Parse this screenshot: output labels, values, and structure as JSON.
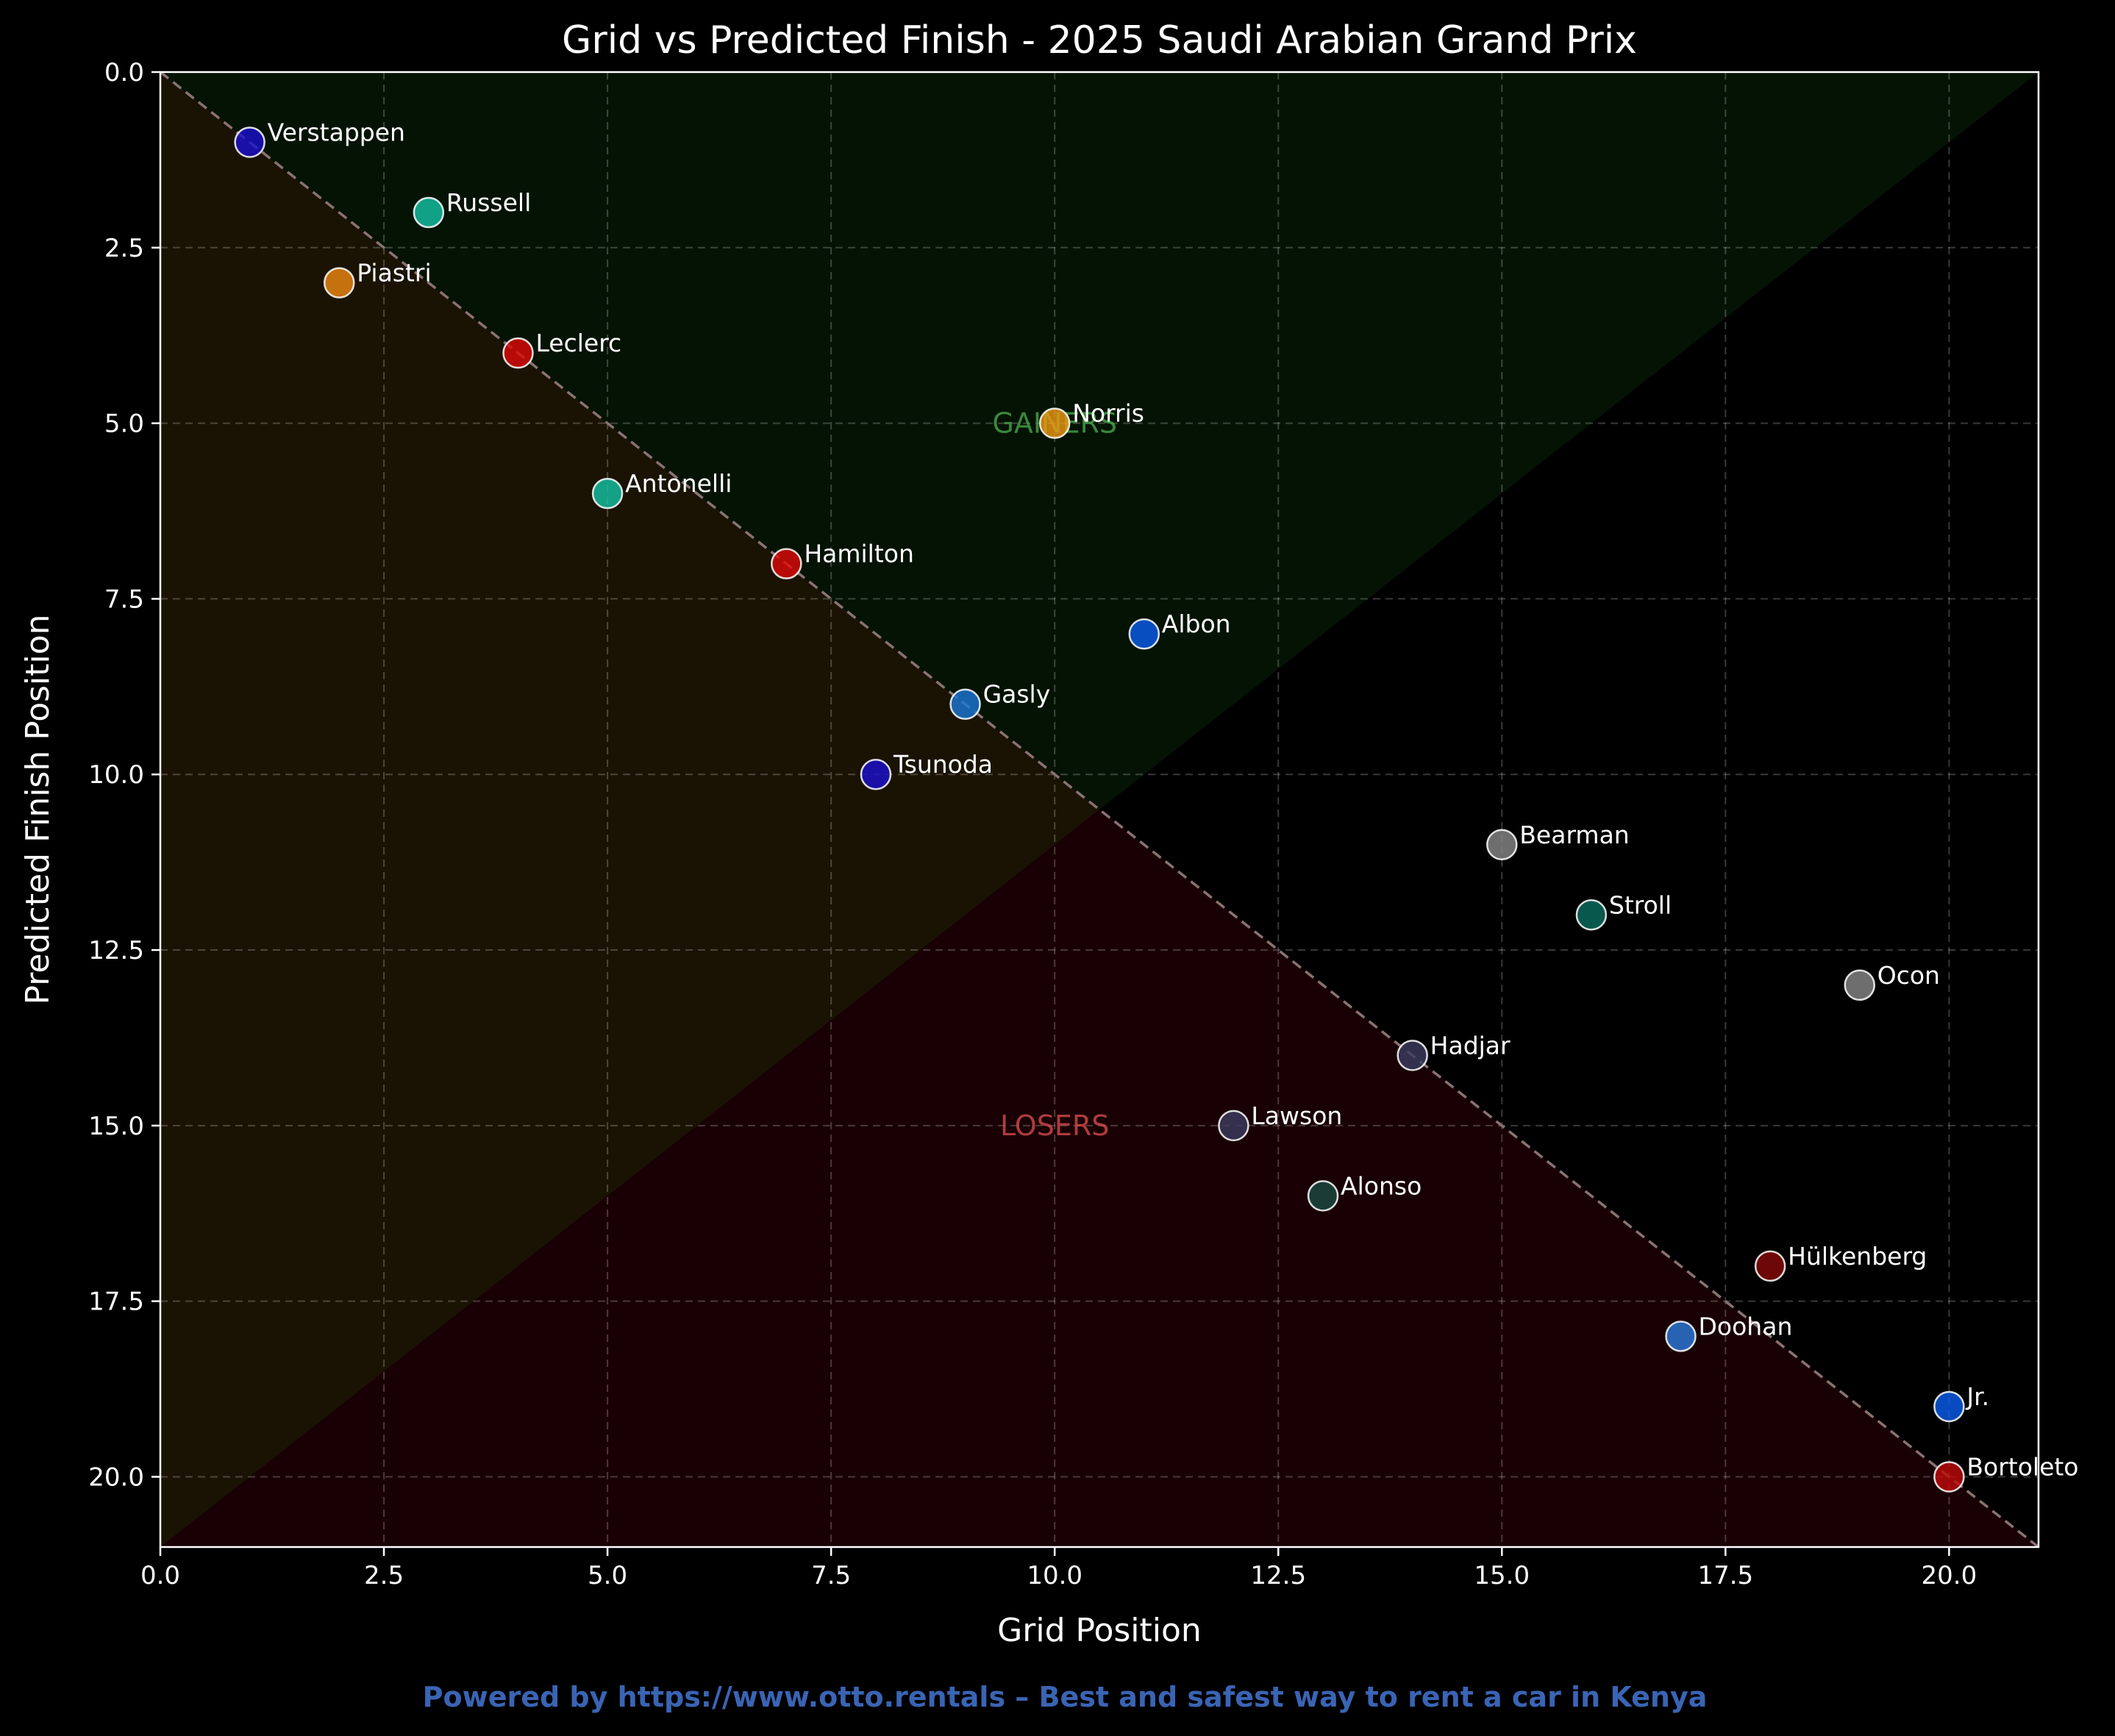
{
  "chart_data": {
    "type": "scatter",
    "title": "Grid vs Predicted Finish - 2025 Saudi Arabian Grand Prix",
    "xlabel": "Grid Position",
    "ylabel": "Predicted Finish Position",
    "xlim": [
      0,
      21
    ],
    "ylim": [
      21,
      0
    ],
    "y_inverted": true,
    "xticks": [
      "0.0",
      "2.5",
      "5.0",
      "7.5",
      "10.0",
      "12.5",
      "15.0",
      "17.5",
      "20.0"
    ],
    "yticks": [
      "0.0",
      "2.5",
      "5.0",
      "7.5",
      "10.0",
      "12.5",
      "15.0",
      "17.5",
      "20.0"
    ],
    "grid": true,
    "reference_line": "y = x",
    "regions": [
      {
        "label": "GAINERS",
        "x": 10,
        "y": 5,
        "color": "#4caf50"
      },
      {
        "label": "LOSERS",
        "x": 10,
        "y": 15,
        "color": "#e05050"
      }
    ],
    "points": [
      {
        "driver": "Verstappen",
        "grid": 1,
        "finish": 1,
        "color": "#1a0fd0"
      },
      {
        "driver": "Russell",
        "grid": 3,
        "finish": 2,
        "color": "#13c6a8"
      },
      {
        "driver": "Piastri",
        "grid": 2,
        "finish": 3,
        "color": "#f08a12"
      },
      {
        "driver": "Leclerc",
        "grid": 4,
        "finish": 4,
        "color": "#e00a0a"
      },
      {
        "driver": "Norris",
        "grid": 10,
        "finish": 5,
        "color": "#f09a12"
      },
      {
        "driver": "Antonelli",
        "grid": 5,
        "finish": 6,
        "color": "#13c6a8"
      },
      {
        "driver": "Hamilton",
        "grid": 7,
        "finish": 7,
        "color": "#e00a0a"
      },
      {
        "driver": "Albon",
        "grid": 11,
        "finish": 8,
        "color": "#0a5ef0"
      },
      {
        "driver": "Gasly",
        "grid": 9,
        "finish": 9,
        "color": "#1a78d8"
      },
      {
        "driver": "Tsunoda",
        "grid": 8,
        "finish": 10,
        "color": "#1a0fd0"
      },
      {
        "driver": "Bearman",
        "grid": 15,
        "finish": 11,
        "color": "#8a8a8a"
      },
      {
        "driver": "Stroll",
        "grid": 16,
        "finish": 12,
        "color": "#0a6e60"
      },
      {
        "driver": "Ocon",
        "grid": 19,
        "finish": 13,
        "color": "#8a8a8a"
      },
      {
        "driver": "Hadjar",
        "grid": 14,
        "finish": 14,
        "color": "#3c3c60"
      },
      {
        "driver": "Lawson",
        "grid": 12,
        "finish": 15,
        "color": "#3c3c60"
      },
      {
        "driver": "Alonso",
        "grid": 13,
        "finish": 16,
        "color": "#1c4a44"
      },
      {
        "driver": "Hülkenberg",
        "grid": 18,
        "finish": 17,
        "color": "#8a0a0a"
      },
      {
        "driver": "Doohan",
        "grid": 17,
        "finish": 18,
        "color": "#2a7ae0"
      },
      {
        "driver": "Jr.",
        "grid": 20,
        "finish": 19,
        "color": "#0a5ef0"
      },
      {
        "driver": "Bortoleto",
        "grid": 20,
        "finish": 20,
        "color": "#c00a0a"
      }
    ]
  },
  "footer": {
    "text": "Powered by https://www.otto.rentals – Best and safest way to rent a car in Kenya",
    "color": "#3a64b4"
  }
}
